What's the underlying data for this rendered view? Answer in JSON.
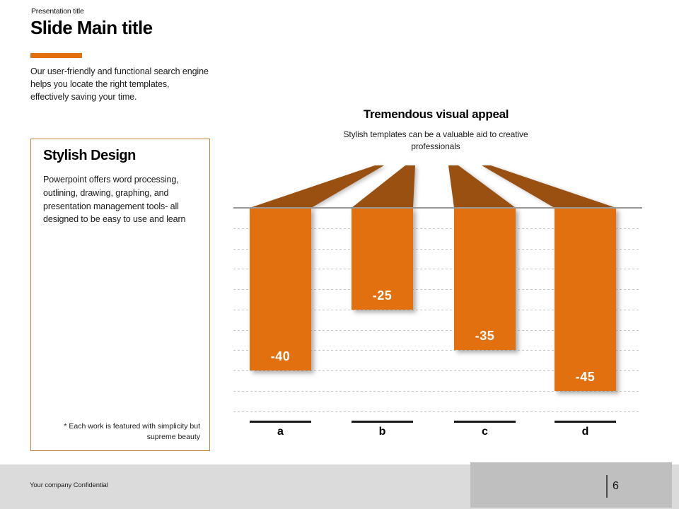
{
  "header": {
    "kicker": "Presentation title",
    "title": "Slide Main title",
    "intro": "Our user-friendly and functional search engine helps you locate the right templates, effectively saving your time."
  },
  "info_box": {
    "heading": "Stylish Design",
    "body": "Powerpoint offers word processing, outlining, drawing, graphing, and presentation management tools- all designed to be easy to use and learn",
    "footnote": "* Each work is featured with simplicity but supreme beauty"
  },
  "chart": {
    "title": "Tremendous visual appeal",
    "subtitle": "Stylish templates can be a valuable aid to creative professionals"
  },
  "chart_data": {
    "type": "bar",
    "categories": [
      "a",
      "b",
      "c",
      "d"
    ],
    "values": [
      -40,
      -25,
      -35,
      -45
    ],
    "data_labels": [
      "-40",
      "-25",
      "-35",
      "-45"
    ],
    "title": "Tremendous visual appeal",
    "subtitle": "Stylish templates can be a valuable aid to creative professionals",
    "xlabel": "",
    "ylabel": "",
    "ylim": [
      -50,
      0
    ],
    "gridline_step": 5,
    "grid": "dashed horizontal, zero baseline solid",
    "legend": "none",
    "bar_color": "#E2700E",
    "ray_color": "#9A5011"
  },
  "footer": {
    "confidential": "Your company Confidential",
    "page_number": "6"
  },
  "colors": {
    "accent_orange": "#E2700E",
    "ray_brown": "#9A5011",
    "footer_gray": "#DBDBDB",
    "footer_block_gray": "#BFBFBF"
  }
}
